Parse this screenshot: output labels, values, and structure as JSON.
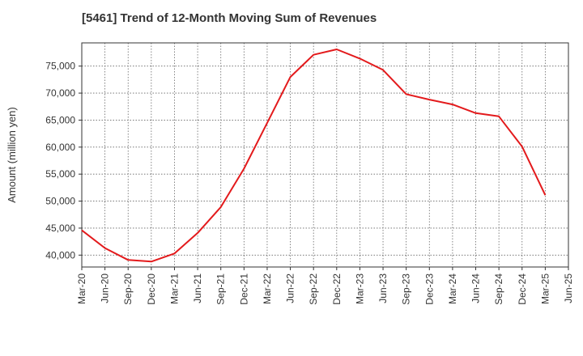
{
  "chart_data": {
    "type": "line",
    "title": "[5461]  Trend of 12-Month Moving Sum of Revenues",
    "xlabel": "",
    "ylabel": "Amount (million yen)",
    "categories": [
      "Mar-20",
      "Jun-20",
      "Sep-20",
      "Dec-20",
      "Mar-21",
      "Jun-21",
      "Sep-21",
      "Dec-21",
      "Mar-22",
      "Jun-22",
      "Sep-22",
      "Dec-22",
      "Mar-23",
      "Jun-23",
      "Sep-23",
      "Dec-23",
      "Mar-24",
      "Jun-24",
      "Sep-24",
      "Dec-24",
      "Mar-25",
      "Jun-25"
    ],
    "ylim": [
      37800,
      79300
    ],
    "yticks": [
      40000,
      45000,
      50000,
      55000,
      60000,
      65000,
      70000,
      75000
    ],
    "ytick_labels": [
      "40,000",
      "45,000",
      "50,000",
      "55,000",
      "60,000",
      "65,000",
      "70,000",
      "75,000"
    ],
    "grid": true,
    "series": [
      {
        "color": "#e31a1c",
        "values": [
          44600,
          41300,
          39100,
          38800,
          40300,
          44100,
          48900,
          56000,
          64500,
          73000,
          77100,
          78100,
          76400,
          74300,
          69800,
          68800,
          67900,
          66300,
          65700,
          60100,
          51100,
          null
        ]
      }
    ]
  }
}
